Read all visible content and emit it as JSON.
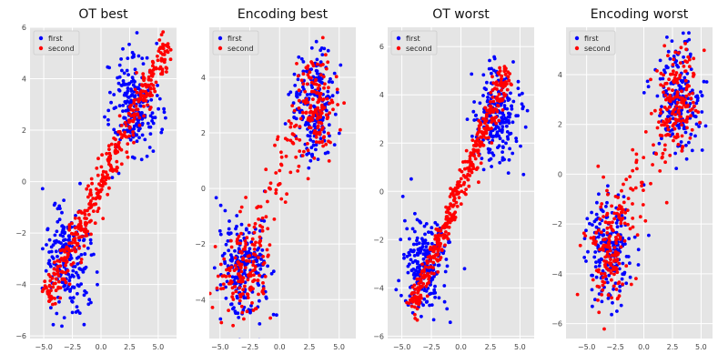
{
  "chart_data": [
    {
      "type": "scatter",
      "title": "OT best",
      "xlim": [
        -6.2,
        6.6
      ],
      "ylim": [
        -6.1,
        6.0
      ],
      "xticks": [
        -5.0,
        -2.5,
        0.0,
        2.5,
        5.0
      ],
      "xtick_labels": [
        "−5.0",
        "−2.5",
        "0.0",
        "2.5",
        "5.0"
      ],
      "yticks": [
        -6,
        -4,
        -2,
        0,
        2,
        4,
        6
      ],
      "ytick_labels": [
        "−6",
        "−4",
        "−2",
        "0",
        "2",
        "4",
        "6"
      ],
      "grid": true,
      "legend": "top-left",
      "series": [
        {
          "name": "first",
          "color": "#0000ff",
          "clusters": [
            {
              "cx": -3.0,
              "cy": -3.0,
              "sx": 1.0,
              "sy": 1.0,
              "n": 210
            },
            {
              "cx": 3.0,
              "cy": 3.0,
              "sx": 1.0,
              "sy": 1.0,
              "n": 210
            }
          ]
        },
        {
          "name": "second",
          "color": "#ff0000",
          "line": {
            "x0": -4.8,
            "y0": -4.6,
            "x1": 5.9,
            "y1": 5.4,
            "scatter": 0.35,
            "n": 420
          }
        }
      ]
    },
    {
      "type": "scatter",
      "title": "Encoding best",
      "xlim": [
        -5.9,
        6.4
      ],
      "ylim": [
        -5.4,
        5.8
      ],
      "xticks": [
        -5.0,
        -2.5,
        0.0,
        2.5,
        5.0
      ],
      "xtick_labels": [
        "−5.0",
        "−2.5",
        "0.0",
        "2.5",
        "5.0"
      ],
      "yticks": [
        -4,
        -2,
        0,
        2,
        4
      ],
      "ytick_labels": [
        "−4",
        "−2",
        "0",
        "2",
        "4"
      ],
      "grid": true,
      "legend": "top-left",
      "series": [
        {
          "name": "first",
          "color": "#0000ff",
          "clusters": [
            {
              "cx": -3.0,
              "cy": -3.0,
              "sx": 1.0,
              "sy": 1.0,
              "n": 210
            },
            {
              "cx": 3.0,
              "cy": 3.0,
              "sx": 1.0,
              "sy": 1.0,
              "n": 210
            }
          ]
        },
        {
          "name": "second",
          "color": "#ff0000",
          "clusters": [
            {
              "cx": -3.0,
              "cy": -3.0,
              "sx": 1.0,
              "sy": 0.8,
              "n": 150
            },
            {
              "cx": 3.0,
              "cy": 3.0,
              "sx": 0.8,
              "sy": 0.9,
              "n": 150
            }
          ],
          "line": {
            "x0": -2.0,
            "y0": -2.0,
            "x1": 2.0,
            "y1": 2.5,
            "scatter": 0.6,
            "n": 60
          }
        }
      ]
    },
    {
      "type": "scatter",
      "title": "OT worst",
      "xlim": [
        -6.2,
        6.2
      ],
      "ylim": [
        -6.1,
        6.8
      ],
      "xticks": [
        -5.0,
        -2.5,
        0.0,
        2.5,
        5.0
      ],
      "xtick_labels": [
        "−5.0",
        "−2.5",
        "0.0",
        "2.5",
        "5.0"
      ],
      "yticks": [
        -6,
        -4,
        -2,
        0,
        2,
        4,
        6
      ],
      "ytick_labels": [
        "−6",
        "−4",
        "−2",
        "0",
        "2",
        "4",
        "6"
      ],
      "grid": true,
      "legend": "top-left",
      "series": [
        {
          "name": "first",
          "color": "#0000ff",
          "clusters": [
            {
              "cx": -3.0,
              "cy": -3.0,
              "sx": 1.0,
              "sy": 1.0,
              "n": 210
            },
            {
              "cx": 3.0,
              "cy": 3.0,
              "sx": 1.0,
              "sy": 1.0,
              "n": 210
            }
          ]
        },
        {
          "name": "second",
          "color": "#ff0000",
          "line": {
            "x0": -4.2,
            "y0": -5.0,
            "x1": 4.0,
            "y1": 5.0,
            "scatter": 0.3,
            "n": 420
          }
        }
      ]
    },
    {
      "type": "scatter",
      "title": "Encoding worst",
      "xlim": [
        -6.8,
        6.0
      ],
      "ylim": [
        -6.6,
        5.9
      ],
      "xticks": [
        -5.0,
        -2.5,
        0.0,
        2.5,
        5.0
      ],
      "xtick_labels": [
        "−5.0",
        "−2.5",
        "0.0",
        "2.5",
        "5.0"
      ],
      "yticks": [
        -6,
        -4,
        -2,
        0,
        2,
        4
      ],
      "ytick_labels": [
        "−6",
        "−4",
        "−2",
        "0",
        "2",
        "4"
      ],
      "grid": true,
      "legend": "top-left",
      "series": [
        {
          "name": "first",
          "color": "#0000ff",
          "clusters": [
            {
              "cx": -3.0,
              "cy": -3.0,
              "sx": 1.0,
              "sy": 1.0,
              "n": 210
            },
            {
              "cx": 3.0,
              "cy": 3.0,
              "sx": 1.0,
              "sy": 1.0,
              "n": 210
            }
          ]
        },
        {
          "name": "second",
          "color": "#ff0000",
          "clusters": [
            {
              "cx": -3.0,
              "cy": -3.0,
              "sx": 0.9,
              "sy": 1.2,
              "n": 150
            },
            {
              "cx": 3.0,
              "cy": 3.0,
              "sx": 0.8,
              "sy": 1.0,
              "n": 150
            }
          ],
          "line": {
            "x0": -2.0,
            "y0": -2.0,
            "x1": 2.5,
            "y1": 2.5,
            "scatter": 0.8,
            "n": 60
          }
        }
      ]
    }
  ]
}
